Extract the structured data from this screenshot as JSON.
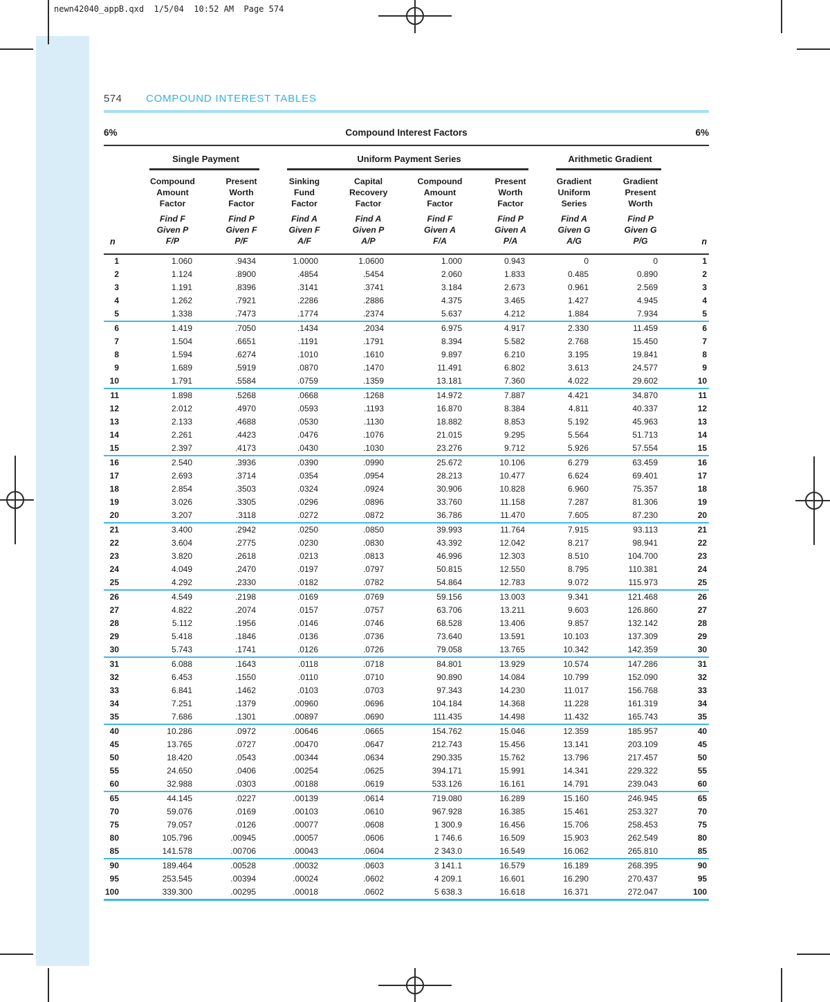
{
  "print_marks": {
    "file_info": "newn42040_appB.qxd  1/5/04  10:52 AM  Page 574"
  },
  "page_header": {
    "page_number": "574",
    "title": "COMPOUND INTEREST TABLES"
  },
  "factors_header": {
    "rate_left": "6%",
    "title": "Compound Interest Factors",
    "rate_right": "6%"
  },
  "colors": {
    "cyan_title": "#35b0e5",
    "cyan_rule_light": "#a3dff6",
    "cyan_separator": "#3fb7e9",
    "band": "#d9edf9",
    "dark_rule": "#2f2f2f"
  },
  "table": {
    "n_label": "n",
    "groups": [
      {
        "label": "Single Payment",
        "span": 2
      },
      {
        "label": "Uniform Payment Series",
        "span": 4
      },
      {
        "label": "Arithmetic Gradient",
        "span": 2
      }
    ],
    "columns": [
      {
        "name": [
          "Compound",
          "Amount",
          "Factor"
        ],
        "find": [
          "Find F",
          "Given P",
          "F/P"
        ]
      },
      {
        "name": [
          "Present",
          "Worth",
          "Factor"
        ],
        "find": [
          "Find P",
          "Given F",
          "P/F"
        ]
      },
      {
        "name": [
          "Sinking",
          "Fund",
          "Factor"
        ],
        "find": [
          "Find A",
          "Given F",
          "A/F"
        ]
      },
      {
        "name": [
          "Capital",
          "Recovery",
          "Factor"
        ],
        "find": [
          "Find A",
          "Given P",
          "A/P"
        ]
      },
      {
        "name": [
          "Compound",
          "Amount",
          "Factor"
        ],
        "find": [
          "Find F",
          "Given A",
          "F/A"
        ]
      },
      {
        "name": [
          "Present",
          "Worth",
          "Factor"
        ],
        "find": [
          "Find P",
          "Given A",
          "P/A"
        ]
      },
      {
        "name": [
          "Gradient",
          "Uniform",
          "Series"
        ],
        "find": [
          "Find A",
          "Given G",
          "A/G"
        ]
      },
      {
        "name": [
          "Gradient",
          "Present",
          "Worth"
        ],
        "find": [
          "Find P",
          "Given G",
          "P/G"
        ]
      }
    ],
    "row_groups": [
      [
        [
          "1",
          "1.060",
          ".9434",
          "1.0000",
          "1.0600",
          "1.000",
          "0.943",
          "0",
          "0"
        ],
        [
          "2",
          "1.124",
          ".8900",
          ".4854",
          ".5454",
          "2.060",
          "1.833",
          "0.485",
          "0.890"
        ],
        [
          "3",
          "1.191",
          ".8396",
          ".3141",
          ".3741",
          "3.184",
          "2.673",
          "0.961",
          "2.569"
        ],
        [
          "4",
          "1.262",
          ".7921",
          ".2286",
          ".2886",
          "4.375",
          "3.465",
          "1.427",
          "4.945"
        ],
        [
          "5",
          "1.338",
          ".7473",
          ".1774",
          ".2374",
          "5.637",
          "4.212",
          "1.884",
          "7.934"
        ]
      ],
      [
        [
          "6",
          "1.419",
          ".7050",
          ".1434",
          ".2034",
          "6.975",
          "4.917",
          "2.330",
          "11.459"
        ],
        [
          "7",
          "1.504",
          ".6651",
          ".1191",
          ".1791",
          "8.394",
          "5.582",
          "2.768",
          "15.450"
        ],
        [
          "8",
          "1.594",
          ".6274",
          ".1010",
          ".1610",
          "9.897",
          "6.210",
          "3.195",
          "19.841"
        ],
        [
          "9",
          "1.689",
          ".5919",
          ".0870",
          ".1470",
          "11.491",
          "6.802",
          "3.613",
          "24.577"
        ],
        [
          "10",
          "1.791",
          ".5584",
          ".0759",
          ".1359",
          "13.181",
          "7.360",
          "4.022",
          "29.602"
        ]
      ],
      [
        [
          "11",
          "1.898",
          ".5268",
          ".0668",
          ".1268",
          "14.972",
          "7.887",
          "4.421",
          "34.870"
        ],
        [
          "12",
          "2.012",
          ".4970",
          ".0593",
          ".1193",
          "16.870",
          "8.384",
          "4.811",
          "40.337"
        ],
        [
          "13",
          "2.133",
          ".4688",
          ".0530",
          ".1130",
          "18.882",
          "8.853",
          "5.192",
          "45.963"
        ],
        [
          "14",
          "2.261",
          ".4423",
          ".0476",
          ".1076",
          "21.015",
          "9.295",
          "5.564",
          "51.713"
        ],
        [
          "15",
          "2.397",
          ".4173",
          ".0430",
          ".1030",
          "23.276",
          "9.712",
          "5.926",
          "57.554"
        ]
      ],
      [
        [
          "16",
          "2.540",
          ".3936",
          ".0390",
          ".0990",
          "25.672",
          "10.106",
          "6.279",
          "63.459"
        ],
        [
          "17",
          "2.693",
          ".3714",
          ".0354",
          ".0954",
          "28.213",
          "10.477",
          "6.624",
          "69.401"
        ],
        [
          "18",
          "2.854",
          ".3503",
          ".0324",
          ".0924",
          "30.906",
          "10.828",
          "6.960",
          "75.357"
        ],
        [
          "19",
          "3.026",
          ".3305",
          ".0296",
          ".0896",
          "33.760",
          "11.158",
          "7.287",
          "81.306"
        ],
        [
          "20",
          "3.207",
          ".3118",
          ".0272",
          ".0872",
          "36.786",
          "11.470",
          "7.605",
          "87.230"
        ]
      ],
      [
        [
          "21",
          "3.400",
          ".2942",
          ".0250",
          ".0850",
          "39.993",
          "11.764",
          "7.915",
          "93.113"
        ],
        [
          "22",
          "3.604",
          ".2775",
          ".0230",
          ".0830",
          "43.392",
          "12.042",
          "8.217",
          "98.941"
        ],
        [
          "23",
          "3.820",
          ".2618",
          ".0213",
          ".0813",
          "46.996",
          "12.303",
          "8.510",
          "104.700"
        ],
        [
          "24",
          "4.049",
          ".2470",
          ".0197",
          ".0797",
          "50.815",
          "12.550",
          "8.795",
          "110.381"
        ],
        [
          "25",
          "4.292",
          ".2330",
          ".0182",
          ".0782",
          "54.864",
          "12.783",
          "9.072",
          "115.973"
        ]
      ],
      [
        [
          "26",
          "4.549",
          ".2198",
          ".0169",
          ".0769",
          "59.156",
          "13.003",
          "9.341",
          "121.468"
        ],
        [
          "27",
          "4.822",
          ".2074",
          ".0157",
          ".0757",
          "63.706",
          "13.211",
          "9.603",
          "126.860"
        ],
        [
          "28",
          "5.112",
          ".1956",
          ".0146",
          ".0746",
          "68.528",
          "13.406",
          "9.857",
          "132.142"
        ],
        [
          "29",
          "5.418",
          ".1846",
          ".0136",
          ".0736",
          "73.640",
          "13.591",
          "10.103",
          "137.309"
        ],
        [
          "30",
          "5.743",
          ".1741",
          ".0126",
          ".0726",
          "79.058",
          "13.765",
          "10.342",
          "142.359"
        ]
      ],
      [
        [
          "31",
          "6.088",
          ".1643",
          ".0118",
          ".0718",
          "84.801",
          "13.929",
          "10.574",
          "147.286"
        ],
        [
          "32",
          "6.453",
          ".1550",
          ".0110",
          ".0710",
          "90.890",
          "14.084",
          "10.799",
          "152.090"
        ],
        [
          "33",
          "6.841",
          ".1462",
          ".0103",
          ".0703",
          "97.343",
          "14.230",
          "11.017",
          "156.768"
        ],
        [
          "34",
          "7.251",
          ".1379",
          ".00960",
          ".0696",
          "104.184",
          "14.368",
          "11.228",
          "161.319"
        ],
        [
          "35",
          "7.686",
          ".1301",
          ".00897",
          ".0690",
          "111.435",
          "14.498",
          "11.432",
          "165.743"
        ]
      ],
      [
        [
          "40",
          "10.286",
          ".0972",
          ".00646",
          ".0665",
          "154.762",
          "15.046",
          "12.359",
          "185.957"
        ],
        [
          "45",
          "13.765",
          ".0727",
          ".00470",
          ".0647",
          "212.743",
          "15.456",
          "13.141",
          "203.109"
        ],
        [
          "50",
          "18.420",
          ".0543",
          ".00344",
          ".0634",
          "290.335",
          "15.762",
          "13.796",
          "217.457"
        ],
        [
          "55",
          "24.650",
          ".0406",
          ".00254",
          ".0625",
          "394.171",
          "15.991",
          "14.341",
          "229.322"
        ],
        [
          "60",
          "32.988",
          ".0303",
          ".00188",
          ".0619",
          "533.126",
          "16.161",
          "14.791",
          "239.043"
        ]
      ],
      [
        [
          "65",
          "44.145",
          ".0227",
          ".00139",
          ".0614",
          "719.080",
          "16.289",
          "15.160",
          "246.945"
        ],
        [
          "70",
          "59.076",
          ".0169",
          ".00103",
          ".0610",
          "967.928",
          "16.385",
          "15.461",
          "253.327"
        ],
        [
          "75",
          "79.057",
          ".0126",
          ".00077",
          ".0608",
          "1 300.9",
          "16.456",
          "15.706",
          "258.453"
        ],
        [
          "80",
          "105.796",
          ".00945",
          ".00057",
          ".0606",
          "1 746.6",
          "16.509",
          "15.903",
          "262.549"
        ],
        [
          "85",
          "141.578",
          ".00706",
          ".00043",
          ".0604",
          "2 343.0",
          "16.549",
          "16.062",
          "265.810"
        ]
      ],
      [
        [
          "90",
          "189.464",
          ".00528",
          ".00032",
          ".0603",
          "3 141.1",
          "16.579",
          "16.189",
          "268.395"
        ],
        [
          "95",
          "253.545",
          ".00394",
          ".00024",
          ".0602",
          "4 209.1",
          "16.601",
          "16.290",
          "270.437"
        ],
        [
          "100",
          "339.300",
          ".00295",
          ".00018",
          ".0602",
          "5 638.3",
          "16.618",
          "16.371",
          "272.047"
        ]
      ]
    ]
  }
}
